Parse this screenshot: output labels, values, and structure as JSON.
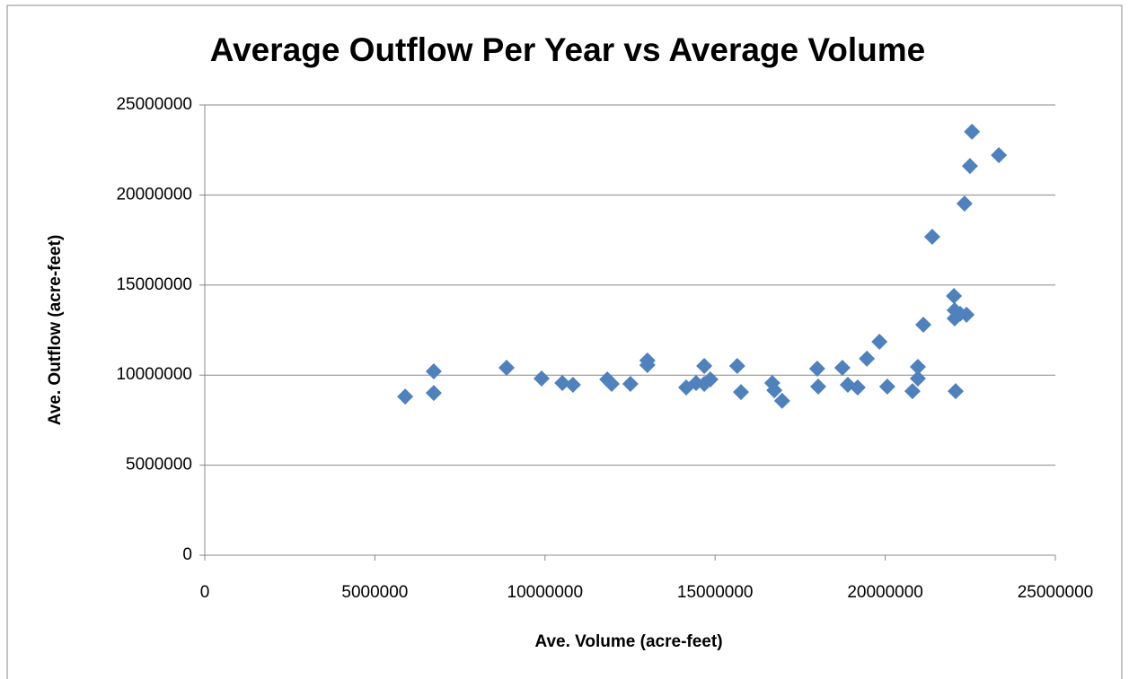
{
  "chart_data": {
    "type": "scatter",
    "title": "Average Outflow Per Year vs Average Volume",
    "x_label": "Ave. Volume (acre-feet)",
    "y_label": "Ave. Outflow  (acre-feet)",
    "color": "#4f81bd",
    "grid": true,
    "xlim": [
      0,
      25000000
    ],
    "xticks": [
      0,
      5000000,
      10000000,
      15000000,
      20000000,
      25000000
    ],
    "ylim": [
      0,
      25000000
    ],
    "yticks": [
      0,
      5000000,
      10000000,
      15000000,
      20000000,
      25000000
    ],
    "x": [
      5890000,
      6730000,
      6730000,
      8870000,
      9900000,
      10510000,
      10820000,
      11830000,
      11960000,
      12510000,
      13010000,
      13010000,
      14150000,
      14440000,
      14680000,
      14680000,
      14860000,
      15650000,
      15760000,
      16680000,
      16740000,
      16970000,
      18000000,
      18030000,
      18740000,
      18900000,
      19190000,
      19460000,
      19830000,
      20060000,
      20800000,
      20960000,
      20960000,
      21120000,
      21380000,
      22020000,
      22040000,
      22040000,
      22070000,
      22200000,
      22390000,
      22330000,
      22490000,
      22550000,
      23340000
    ],
    "values": [
      8810000,
      10210000,
      9010000,
      10410000,
      9810000,
      9560000,
      9460000,
      9760000,
      9510000,
      9510000,
      10810000,
      10560000,
      9310000,
      9560000,
      10510000,
      9510000,
      9760000,
      10510000,
      9060000,
      9560000,
      9160000,
      8570000,
      10360000,
      9360000,
      10410000,
      9460000,
      9310000,
      10910000,
      11850000,
      9360000,
      9110000,
      10460000,
      9810000,
      12800000,
      17680000,
      14390000,
      13600000,
      13150000,
      9110000,
      13400000,
      13350000,
      19520000,
      21610000,
      23510000,
      22210000
    ]
  }
}
